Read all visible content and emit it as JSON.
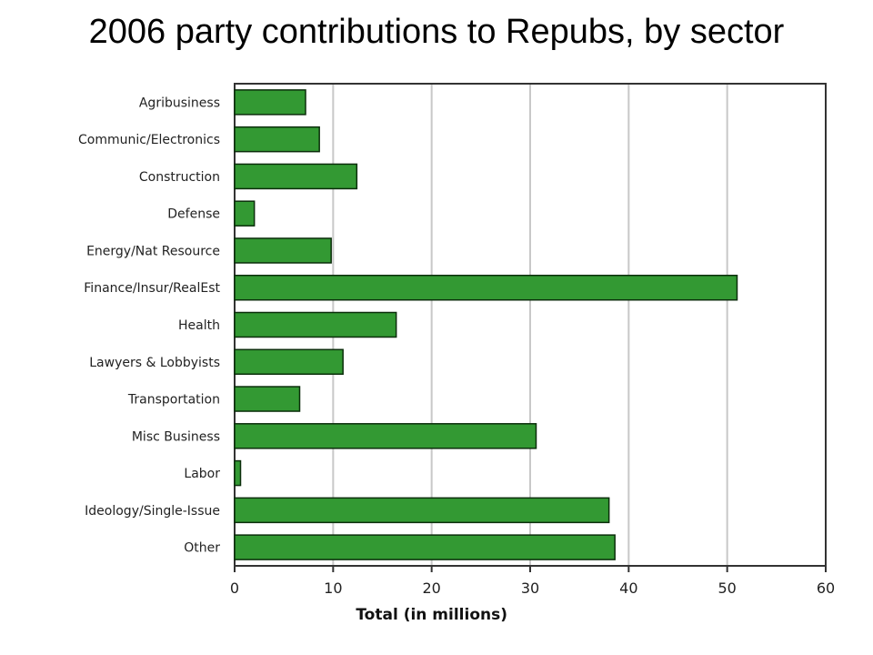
{
  "slide": {
    "title": "2006 party contributions to Repubs, by sector"
  },
  "chart_data": {
    "type": "bar",
    "orientation": "horizontal",
    "categories": [
      "Agribusiness",
      "Communic/Electronics",
      "Construction",
      "Defense",
      "Energy/Nat Resource",
      "Finance/Insur/RealEst",
      "Health",
      "Lawyers & Lobbyists",
      "Transportation",
      "Misc Business",
      "Labor",
      "Ideology/Single-Issue",
      "Other"
    ],
    "values": [
      7.2,
      8.6,
      12.4,
      2.0,
      9.8,
      51.0,
      16.4,
      11.0,
      6.6,
      30.6,
      0.6,
      38.0,
      38.6
    ],
    "title": "2006 party contributions to Repubs, by sector",
    "xlabel": "Total (in millions)",
    "ylabel": "",
    "xlim": [
      0,
      60
    ],
    "xticks": [
      0,
      10,
      20,
      30,
      40,
      50,
      60
    ],
    "grid": "vertical",
    "legend": "none",
    "colors": {
      "bar_fill": "#339933",
      "bar_stroke": "#0b2e0b",
      "grid": "#c8c8c8",
      "frame": "#333333"
    }
  }
}
